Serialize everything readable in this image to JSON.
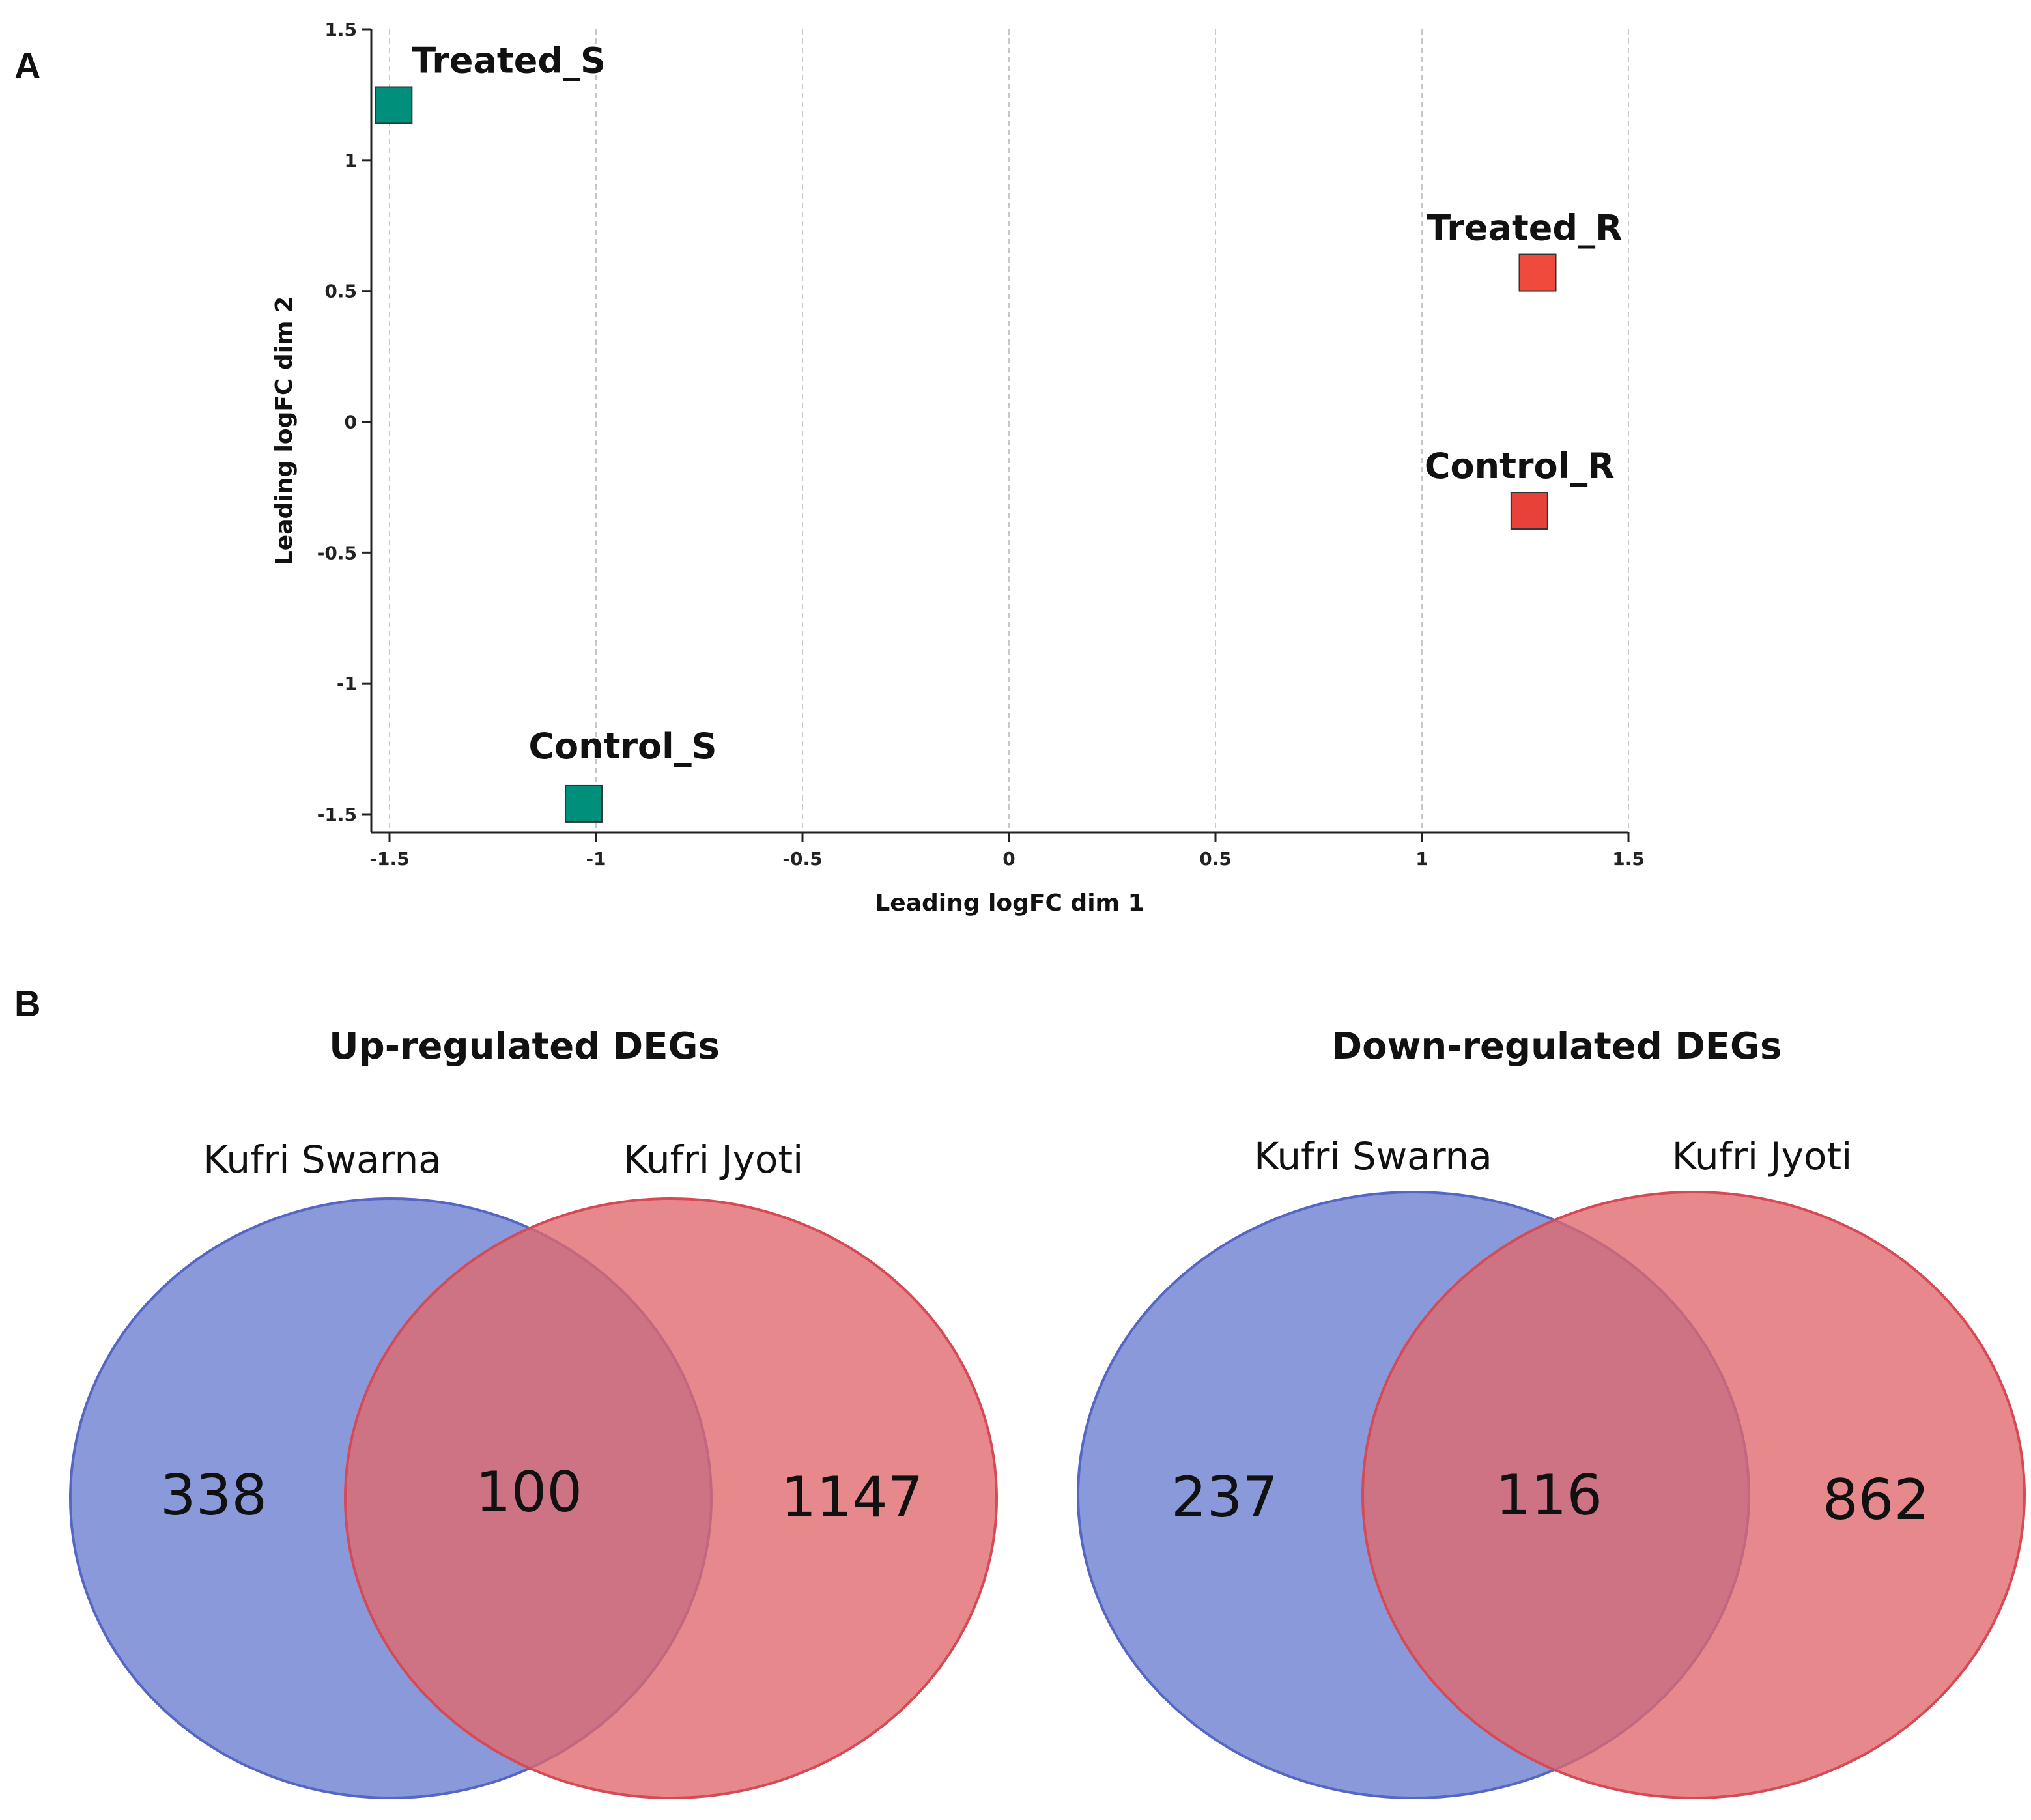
{
  "panels": {
    "a_letter": "A",
    "b_letter": "B"
  },
  "chart_data": [
    {
      "type": "scatter",
      "title": "",
      "xlabel": "Leading logFC dim 1",
      "ylabel": "Leading logFC dim 2",
      "xlim": [
        -1.5,
        1.5
      ],
      "ylim": [
        -1.5,
        1.5
      ],
      "xticks": [
        -1.5,
        -1,
        -0.5,
        0,
        0.5,
        1,
        1.5
      ],
      "yticks": [
        1.5,
        1,
        0.5,
        0,
        -0.5,
        -1,
        -1.5
      ],
      "xtick_labels": [
        "-1.5",
        "-1",
        "-0.5",
        "0",
        "0.5",
        "1",
        "1.5"
      ],
      "ytick_labels": [
        "1.5",
        "1",
        "0.5",
        "0",
        "-0.5",
        "-1",
        "-1.5"
      ],
      "grid": "vertical dashed",
      "marker": "square",
      "points": [
        {
          "label": "Treated_S",
          "x": -1.49,
          "y": 1.21,
          "color": "#008f7a"
        },
        {
          "label": "Control_S",
          "x": -1.03,
          "y": -1.46,
          "color": "#008f7a"
        },
        {
          "label": "Treated_R",
          "x": 1.28,
          "y": 0.57,
          "color": "#f04a3c"
        },
        {
          "label": "Control_R",
          "x": 1.26,
          "y": -0.34,
          "color": "#e8413a"
        }
      ]
    },
    {
      "type": "venn",
      "title": "Up-regulated DEGs",
      "sets": [
        {
          "name": "Kufri Swarna",
          "only": "338",
          "color": "#7f91d3"
        },
        {
          "name": "Kufri Jyoti",
          "only": "1147",
          "color": "#e07a7a"
        }
      ],
      "intersection": "100"
    },
    {
      "type": "venn",
      "title": "Down-regulated DEGs",
      "sets": [
        {
          "name": "Kufri Swarna",
          "only": "237",
          "color": "#7f91d3"
        },
        {
          "name": "Kufri Jyoti",
          "only": "862",
          "color": "#e07a7a"
        }
      ],
      "intersection": "116"
    }
  ]
}
